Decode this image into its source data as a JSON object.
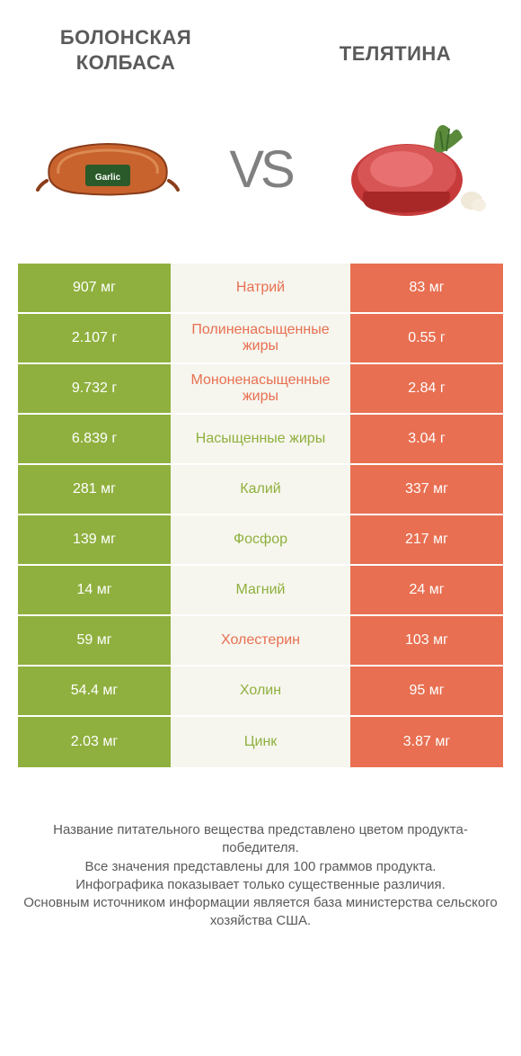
{
  "colors": {
    "green": "#8fb03e",
    "orange": "#e86f51",
    "mid_bg": "#f6f6ee",
    "text": "#5a5a5a",
    "white": "#ffffff",
    "vs": "#808080"
  },
  "header": {
    "left_title_line1": "БОЛОНСКАЯ",
    "left_title_line2": "КОЛБАСА",
    "right_title": "ТЕЛЯТИНА",
    "vs": "VS"
  },
  "rows": [
    {
      "left": "907 мг",
      "mid": "Натрий",
      "right": "83 мг",
      "winner": "left"
    },
    {
      "left": "2.107 г",
      "mid": "Полиненасыщенные жиры",
      "right": "0.55 г",
      "winner": "left"
    },
    {
      "left": "9.732 г",
      "mid": "Мононенасыщенные жиры",
      "right": "2.84 г",
      "winner": "left"
    },
    {
      "left": "6.839 г",
      "mid": "Насыщенные жиры",
      "right": "3.04 г",
      "winner": "right"
    },
    {
      "left": "281 мг",
      "mid": "Калий",
      "right": "337 мг",
      "winner": "right"
    },
    {
      "left": "139 мг",
      "mid": "Фосфор",
      "right": "217 мг",
      "winner": "right"
    },
    {
      "left": "14 мг",
      "mid": "Магний",
      "right": "24 мг",
      "winner": "right"
    },
    {
      "left": "59 мг",
      "mid": "Холестерин",
      "right": "103 мг",
      "winner": "left"
    },
    {
      "left": "54.4 мг",
      "mid": "Холин",
      "right": "95 мг",
      "winner": "right"
    },
    {
      "left": "2.03 мг",
      "mid": "Цинк",
      "right": "3.87 мг",
      "winner": "right"
    }
  ],
  "footer": {
    "line1": "Название питательного вещества представлено цветом продукта-победителя.",
    "line2": "Все значения представлены для 100 граммов продукта.",
    "line3": "Инфографика показывает только существенные различия.",
    "line4": "Основным источником информации является база министерства сельского хозяйства США."
  }
}
